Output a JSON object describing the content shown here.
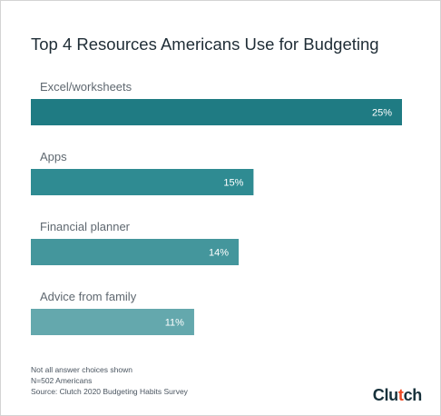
{
  "title": "Top 4 Resources Americans Use for Budgeting",
  "chart_data": {
    "type": "bar",
    "orientation": "horizontal",
    "title": "Top 4 Resources Americans Use for Budgeting",
    "categories": [
      "Excel/worksheets",
      "Apps",
      "Financial planner",
      "Advice from family"
    ],
    "values": [
      25,
      15,
      14,
      11
    ],
    "value_labels": [
      "25%",
      "15%",
      "14%",
      "11%"
    ],
    "unit": "%",
    "xlim": [
      0,
      25
    ],
    "grid": false,
    "legend": "none",
    "colors": [
      "#1f7b83",
      "#2f8b92",
      "#44969c",
      "#64a8ad"
    ]
  },
  "notes": [
    "Not all answer choices shown",
    "N=502 Americans",
    "Source: Clutch 2020 Budgeting Habits Survey"
  ],
  "logo": {
    "text": "Clutch",
    "accent_color": "#ef4a24"
  }
}
